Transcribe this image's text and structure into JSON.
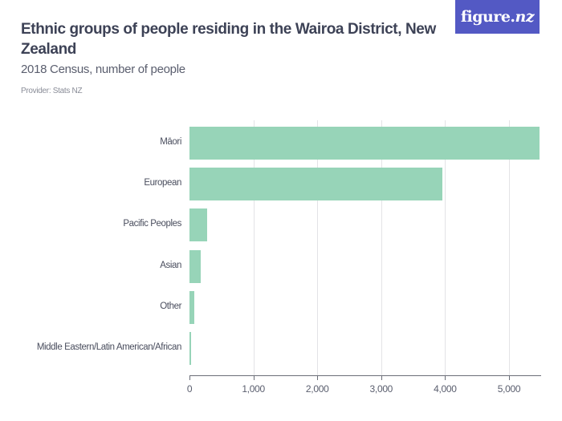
{
  "header": {
    "title": "Ethnic groups of people residing in the Wairoa District, New Zealand",
    "subtitle": "2018 Census, number of people",
    "provider": "Provider: Stats NZ"
  },
  "logo": {
    "text_main": "figure.",
    "text_italic": "nz",
    "bg_color": "#5359c4"
  },
  "colors": {
    "bar": "#97d4b8",
    "text": "#3d4256",
    "grid": "#e3e3e6"
  },
  "chart_data": {
    "type": "bar",
    "orientation": "horizontal",
    "title": "Ethnic groups of people residing in the Wairoa District, New Zealand",
    "subtitle": "2018 Census, number of people",
    "categories": [
      "Māori",
      "European",
      "Pacific Peoples",
      "Asian",
      "Other",
      "Middle Eastern/Latin American/African"
    ],
    "values": [
      5480,
      3960,
      276,
      180,
      78,
      15
    ],
    "xlabel": "",
    "ylabel": "",
    "xlim": [
      0,
      5500
    ],
    "x_ticks": [
      0,
      1000,
      2000,
      3000,
      4000,
      5000
    ],
    "x_tick_labels": [
      "0",
      "1,000",
      "2,000",
      "3,000",
      "4,000",
      "5,000"
    ],
    "grid": true,
    "legend": "none"
  }
}
